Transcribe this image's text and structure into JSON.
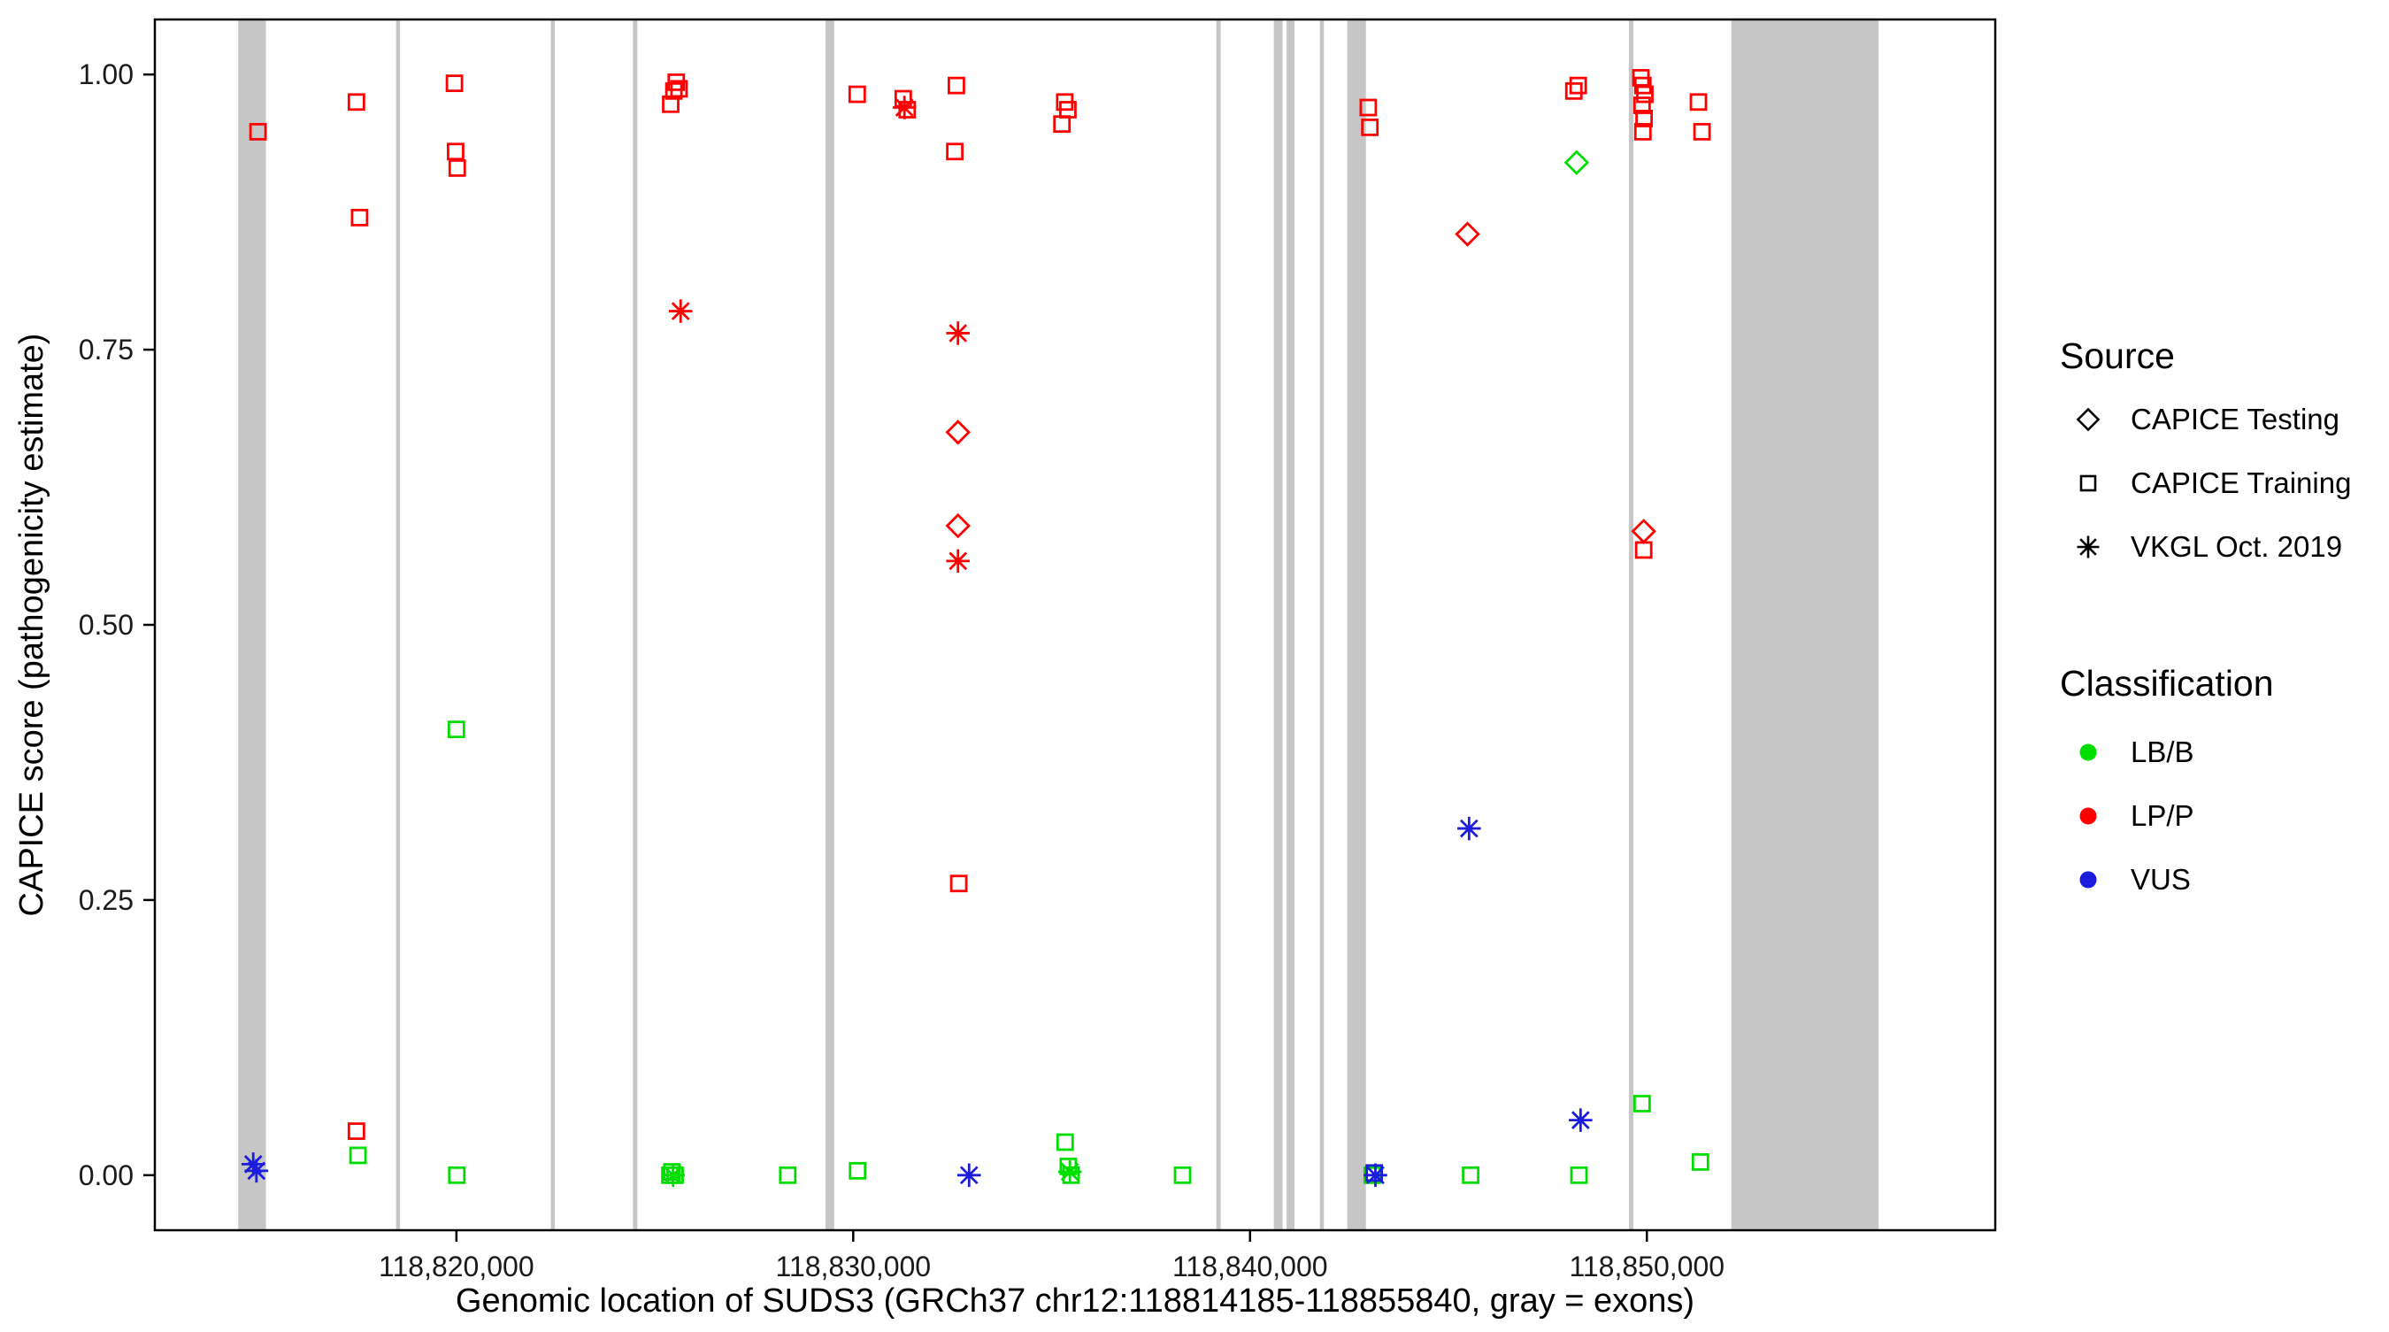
{
  "axes": {
    "x_title": "Genomic location of SUDS3 (GRCh37 chr12:118814185-118855840, gray = exons)",
    "y_title": "CAPICE score (pathogenicity estimate)"
  },
  "legend": {
    "source": {
      "title": "Source",
      "items": [
        {
          "label": "CAPICE Testing",
          "shape": "diamond"
        },
        {
          "label": "CAPICE Training",
          "shape": "square"
        },
        {
          "label": "VKGL Oct. 2019",
          "shape": "asterisk"
        }
      ]
    },
    "classification": {
      "title": "Classification",
      "items": [
        {
          "label": "LB/B",
          "color": "#00DD00"
        },
        {
          "label": "LP/P",
          "color": "#FF0000"
        },
        {
          "label": "VUS",
          "color": "#1C1CDD"
        }
      ]
    }
  },
  "chart_data": {
    "type": "scatter",
    "title": "",
    "xlabel": "Genomic location of SUDS3 (GRCh37 chr12:118814185-118855840, gray = exons)",
    "ylabel": "CAPICE score (pathogenicity estimate)",
    "xlim": [
      118812400,
      118858780
    ],
    "ylim": [
      -0.05,
      1.05
    ],
    "grid": false,
    "legend_position": "right",
    "x_ticks": [
      {
        "value": 118820000,
        "label": "118,820,000"
      },
      {
        "value": 118830000,
        "label": "118,830,000"
      },
      {
        "value": 118840000,
        "label": "118,840,000"
      },
      {
        "value": 118850000,
        "label": "118,850,000"
      }
    ],
    "y_ticks": [
      {
        "value": 0.0,
        "label": "0.00"
      },
      {
        "value": 0.25,
        "label": "0.25"
      },
      {
        "value": 0.5,
        "label": "0.50"
      },
      {
        "value": 0.75,
        "label": "0.75"
      },
      {
        "value": 1.0,
        "label": "1.00"
      }
    ],
    "exon_color": "#C6C6C6",
    "class_colors": {
      "LB/B": "#00DD00",
      "LP/P": "#FF0000",
      "VUS": "#1C1CDD"
    },
    "exons": [
      [
        118814500,
        118815200
      ],
      [
        118818480,
        118818580
      ],
      [
        118822380,
        118822480
      ],
      [
        118824450,
        118824560
      ],
      [
        118829300,
        118829520
      ],
      [
        118839150,
        118839260
      ],
      [
        118840600,
        118840820
      ],
      [
        118840920,
        118841120
      ],
      [
        118841760,
        118841860
      ],
      [
        118842450,
        118842920
      ],
      [
        118849550,
        118849660
      ],
      [
        118852130,
        118855840
      ]
    ],
    "points": [
      {
        "x": 118815000,
        "y": 0.948,
        "shape": "square",
        "class": "LP/P"
      },
      {
        "x": 118817480,
        "y": 0.975,
        "shape": "square",
        "class": "LP/P"
      },
      {
        "x": 118817560,
        "y": 0.87,
        "shape": "square",
        "class": "LP/P"
      },
      {
        "x": 118817480,
        "y": 0.04,
        "shape": "square",
        "class": "LP/P"
      },
      {
        "x": 118819950,
        "y": 0.992,
        "shape": "square",
        "class": "LP/P"
      },
      {
        "x": 118819980,
        "y": 0.93,
        "shape": "square",
        "class": "LP/P"
      },
      {
        "x": 118820020,
        "y": 0.915,
        "shape": "square",
        "class": "LP/P"
      },
      {
        "x": 118825400,
        "y": 0.973,
        "shape": "square",
        "class": "LP/P"
      },
      {
        "x": 118825480,
        "y": 0.985,
        "shape": "square",
        "class": "LP/P"
      },
      {
        "x": 118825540,
        "y": 0.993,
        "shape": "square",
        "class": "LP/P"
      },
      {
        "x": 118825610,
        "y": 0.987,
        "shape": "square",
        "class": "LP/P"
      },
      {
        "x": 118825650,
        "y": 0.785,
        "shape": "asterisk",
        "class": "LP/P"
      },
      {
        "x": 118830100,
        "y": 0.982,
        "shape": "square",
        "class": "LP/P"
      },
      {
        "x": 118831260,
        "y": 0.978,
        "shape": "square",
        "class": "LP/P"
      },
      {
        "x": 118831290,
        "y": 0.97,
        "shape": "asterisk",
        "class": "LP/P"
      },
      {
        "x": 118831360,
        "y": 0.968,
        "shape": "square",
        "class": "LP/P"
      },
      {
        "x": 118832600,
        "y": 0.99,
        "shape": "square",
        "class": "LP/P"
      },
      {
        "x": 118832560,
        "y": 0.93,
        "shape": "square",
        "class": "LP/P"
      },
      {
        "x": 118832640,
        "y": 0.765,
        "shape": "asterisk",
        "class": "LP/P"
      },
      {
        "x": 118832640,
        "y": 0.675,
        "shape": "diamond",
        "class": "LP/P"
      },
      {
        "x": 118832640,
        "y": 0.59,
        "shape": "diamond",
        "class": "LP/P"
      },
      {
        "x": 118832640,
        "y": 0.558,
        "shape": "asterisk",
        "class": "LP/P"
      },
      {
        "x": 118832660,
        "y": 0.265,
        "shape": "square",
        "class": "LP/P"
      },
      {
        "x": 118835260,
        "y": 0.955,
        "shape": "square",
        "class": "LP/P"
      },
      {
        "x": 118835330,
        "y": 0.975,
        "shape": "square",
        "class": "LP/P"
      },
      {
        "x": 118835410,
        "y": 0.968,
        "shape": "square",
        "class": "LP/P"
      },
      {
        "x": 118842980,
        "y": 0.97,
        "shape": "square",
        "class": "LP/P"
      },
      {
        "x": 118843020,
        "y": 0.952,
        "shape": "square",
        "class": "LP/P"
      },
      {
        "x": 118845480,
        "y": 0.855,
        "shape": "diamond",
        "class": "LP/P"
      },
      {
        "x": 118848160,
        "y": 0.985,
        "shape": "square",
        "class": "LP/P"
      },
      {
        "x": 118848270,
        "y": 0.99,
        "shape": "square",
        "class": "LP/P"
      },
      {
        "x": 118849850,
        "y": 0.997,
        "shape": "square",
        "class": "LP/P"
      },
      {
        "x": 118849900,
        "y": 0.99,
        "shape": "square",
        "class": "LP/P"
      },
      {
        "x": 118849950,
        "y": 0.982,
        "shape": "square",
        "class": "LP/P"
      },
      {
        "x": 118849880,
        "y": 0.972,
        "shape": "square",
        "class": "LP/P"
      },
      {
        "x": 118849930,
        "y": 0.96,
        "shape": "square",
        "class": "LP/P"
      },
      {
        "x": 118849900,
        "y": 0.948,
        "shape": "square",
        "class": "LP/P"
      },
      {
        "x": 118849920,
        "y": 0.585,
        "shape": "diamond",
        "class": "LP/P"
      },
      {
        "x": 118849920,
        "y": 0.568,
        "shape": "square",
        "class": "LP/P"
      },
      {
        "x": 118851300,
        "y": 0.975,
        "shape": "square",
        "class": "LP/P"
      },
      {
        "x": 118851390,
        "y": 0.948,
        "shape": "square",
        "class": "LP/P"
      },
      {
        "x": 118817520,
        "y": 0.018,
        "shape": "square",
        "class": "LB/B"
      },
      {
        "x": 118820000,
        "y": 0.405,
        "shape": "square",
        "class": "LB/B"
      },
      {
        "x": 118820010,
        "y": 0.0,
        "shape": "square",
        "class": "LB/B"
      },
      {
        "x": 118825380,
        "y": 0.0,
        "shape": "square",
        "class": "LB/B"
      },
      {
        "x": 118825430,
        "y": 0.003,
        "shape": "square",
        "class": "LB/B"
      },
      {
        "x": 118825460,
        "y": 0.0,
        "shape": "asterisk",
        "class": "LB/B"
      },
      {
        "x": 118825510,
        "y": 0.0,
        "shape": "square",
        "class": "LB/B"
      },
      {
        "x": 118828350,
        "y": 0.0,
        "shape": "square",
        "class": "LB/B"
      },
      {
        "x": 118830110,
        "y": 0.004,
        "shape": "square",
        "class": "LB/B"
      },
      {
        "x": 118835340,
        "y": 0.03,
        "shape": "square",
        "class": "LB/B"
      },
      {
        "x": 118835420,
        "y": 0.008,
        "shape": "square",
        "class": "LB/B"
      },
      {
        "x": 118835460,
        "y": 0.003,
        "shape": "asterisk",
        "class": "LB/B"
      },
      {
        "x": 118835490,
        "y": 0.0,
        "shape": "square",
        "class": "LB/B"
      },
      {
        "x": 118838300,
        "y": 0.0,
        "shape": "square",
        "class": "LB/B"
      },
      {
        "x": 118843080,
        "y": 0.0,
        "shape": "square",
        "class": "LB/B"
      },
      {
        "x": 118845560,
        "y": 0.0,
        "shape": "square",
        "class": "LB/B"
      },
      {
        "x": 118848230,
        "y": 0.92,
        "shape": "diamond",
        "class": "LB/B"
      },
      {
        "x": 118848290,
        "y": 0.0,
        "shape": "square",
        "class": "LB/B"
      },
      {
        "x": 118849880,
        "y": 0.065,
        "shape": "square",
        "class": "LB/B"
      },
      {
        "x": 118851350,
        "y": 0.012,
        "shape": "square",
        "class": "LB/B"
      },
      {
        "x": 118814880,
        "y": 0.01,
        "shape": "asterisk",
        "class": "VUS"
      },
      {
        "x": 118814960,
        "y": 0.004,
        "shape": "asterisk",
        "class": "VUS"
      },
      {
        "x": 118832920,
        "y": 0.0,
        "shape": "asterisk",
        "class": "VUS"
      },
      {
        "x": 118843130,
        "y": 0.002,
        "shape": "square",
        "class": "VUS"
      },
      {
        "x": 118843160,
        "y": 0.0,
        "shape": "asterisk",
        "class": "VUS"
      },
      {
        "x": 118845520,
        "y": 0.315,
        "shape": "asterisk",
        "class": "VUS"
      },
      {
        "x": 118848330,
        "y": 0.05,
        "shape": "asterisk",
        "class": "VUS"
      }
    ]
  }
}
